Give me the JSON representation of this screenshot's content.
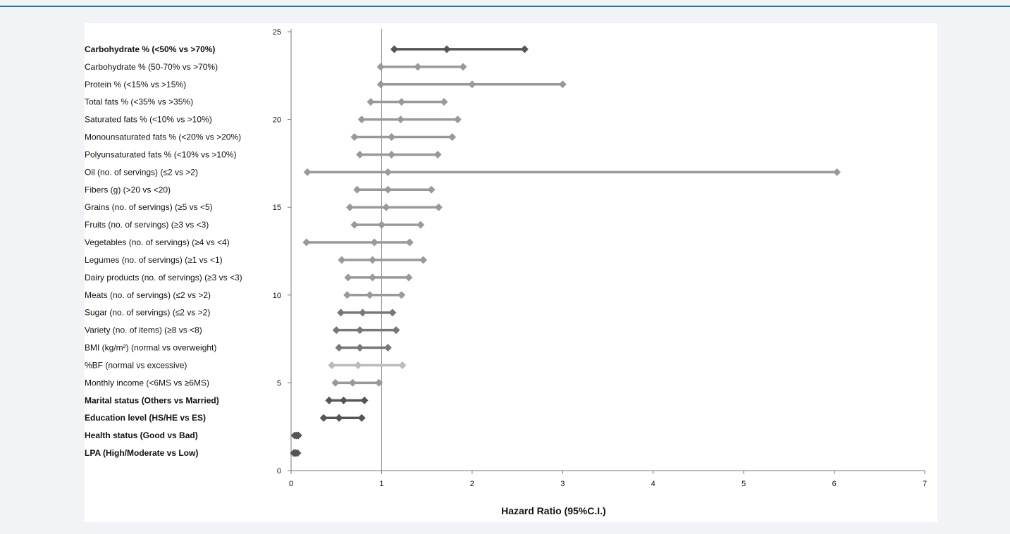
{
  "chart_data": {
    "type": "scatter",
    "subtype": "forest-plot",
    "title": "",
    "xlabel": "Hazard Ratio (95%C.I.)",
    "ylabel": "",
    "xlim": [
      0,
      7
    ],
    "ylim": [
      0,
      25
    ],
    "x_ticks": [
      "0",
      "1",
      "2",
      "3",
      "4",
      "5",
      "6",
      "7"
    ],
    "y_ticks": [
      "0",
      "5",
      "10",
      "15",
      "20",
      "25"
    ],
    "reference_line_x": 1,
    "grid": false,
    "rows": [
      {
        "label": "Carbohydrate % (<50% vs >70%)",
        "bold": true,
        "y": 24,
        "lower": 1.14,
        "hr": 1.72,
        "upper": 2.58,
        "color": "#555555"
      },
      {
        "label": "Carbohydrate % (50-70% vs >70%)",
        "bold": false,
        "y": 23,
        "lower": 0.99,
        "hr": 1.4,
        "upper": 1.9,
        "color": "#999999"
      },
      {
        "label": "Protein % (<15% vs >15%)",
        "bold": false,
        "y": 22,
        "lower": 0.99,
        "hr": 2.0,
        "upper": 3.0,
        "color": "#999999"
      },
      {
        "label": "Total fats % (<35% vs >35%)",
        "bold": false,
        "y": 21,
        "lower": 0.88,
        "hr": 1.22,
        "upper": 1.69,
        "color": "#999999"
      },
      {
        "label": "Saturated fats % (<10% vs >10%)",
        "bold": false,
        "y": 20,
        "lower": 0.78,
        "hr": 1.21,
        "upper": 1.84,
        "color": "#999999"
      },
      {
        "label": "Monounsaturated fats % (<20% vs >20%)",
        "bold": false,
        "y": 19,
        "lower": 0.7,
        "hr": 1.11,
        "upper": 1.78,
        "color": "#999999"
      },
      {
        "label": "Polyunsaturated fats % (<10% vs >10%)",
        "bold": false,
        "y": 18,
        "lower": 0.76,
        "hr": 1.11,
        "upper": 1.62,
        "color": "#999999"
      },
      {
        "label": "Oil (no. of servings) (≤2 vs >2)",
        "bold": false,
        "y": 17,
        "lower": 0.18,
        "hr": 1.07,
        "upper": 6.03,
        "color": "#999999"
      },
      {
        "label": "Fibers (g) (>20 vs <20)",
        "bold": false,
        "y": 16,
        "lower": 0.73,
        "hr": 1.07,
        "upper": 1.55,
        "color": "#999999"
      },
      {
        "label": "Grains (no. of servings) (≥5 vs <5)",
        "bold": false,
        "y": 15,
        "lower": 0.65,
        "hr": 1.05,
        "upper": 1.63,
        "color": "#999999"
      },
      {
        "label": "Fruits (no. of servings) (≥3 vs <3)",
        "bold": false,
        "y": 14,
        "lower": 0.7,
        "hr": 1.0,
        "upper": 1.43,
        "color": "#999999"
      },
      {
        "label": "Vegetables (no. of servings) (≥4 vs <4)",
        "bold": false,
        "y": 13,
        "lower": 0.17,
        "hr": 0.92,
        "upper": 1.31,
        "color": "#999999"
      },
      {
        "label": "Legumes (no. of servings) (≥1 vs <1)",
        "bold": false,
        "y": 12,
        "lower": 0.56,
        "hr": 0.9,
        "upper": 1.46,
        "color": "#999999"
      },
      {
        "label": "Dairy products (no. of servings) (≥3 vs <3)",
        "bold": false,
        "y": 11,
        "lower": 0.63,
        "hr": 0.9,
        "upper": 1.3,
        "color": "#999999"
      },
      {
        "label": "Meats (no. of servings) (≤2 vs >2)",
        "bold": false,
        "y": 10,
        "lower": 0.62,
        "hr": 0.87,
        "upper": 1.22,
        "color": "#999999"
      },
      {
        "label": "Sugar (no. of servings) (≤2 vs >2)",
        "bold": false,
        "y": 9,
        "lower": 0.55,
        "hr": 0.79,
        "upper": 1.12,
        "color": "#777777"
      },
      {
        "label": "Variety (no. of items) (≥8 vs <8)",
        "bold": false,
        "y": 8,
        "lower": 0.5,
        "hr": 0.76,
        "upper": 1.16,
        "color": "#777777"
      },
      {
        "label": "BMI (kg/m²) (normal vs overweight)",
        "bold": false,
        "y": 7,
        "lower": 0.53,
        "hr": 0.76,
        "upper": 1.07,
        "color": "#777777"
      },
      {
        "label": "%BF (normal vs excessive)",
        "bold": false,
        "y": 6,
        "lower": 0.45,
        "hr": 0.74,
        "upper": 1.23,
        "color": "#bbbbbb"
      },
      {
        "label": "Monthly income (<6MS vs ≥6MS)",
        "bold": false,
        "y": 5,
        "lower": 0.49,
        "hr": 0.68,
        "upper": 0.97,
        "color": "#999999"
      },
      {
        "label": "Marital status (Others vs Married)",
        "bold": true,
        "y": 4,
        "lower": 0.42,
        "hr": 0.58,
        "upper": 0.81,
        "color": "#555555"
      },
      {
        "label": "Education level (HS/HE vs ES)",
        "bold": true,
        "y": 3,
        "lower": 0.36,
        "hr": 0.53,
        "upper": 0.78,
        "color": "#555555"
      },
      {
        "label": "Health status (Good vs Bad)",
        "bold": true,
        "y": 2,
        "lower": 0.04,
        "hr": 0.06,
        "upper": 0.08,
        "color": "#555555"
      },
      {
        "label": "LPA (High/Moderate vs Low)",
        "bold": true,
        "y": 1,
        "lower": 0.03,
        "hr": 0.05,
        "upper": 0.07,
        "color": "#555555"
      }
    ]
  }
}
